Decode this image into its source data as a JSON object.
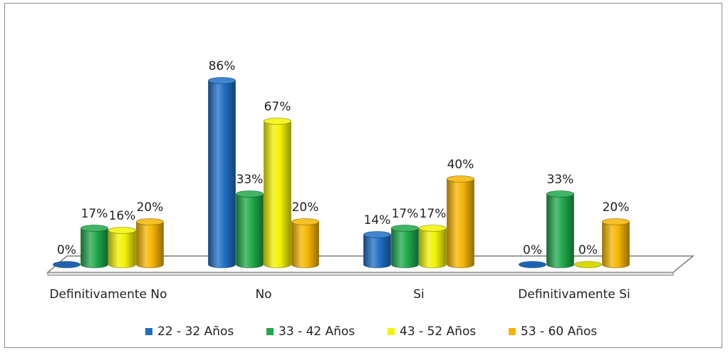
{
  "chart_data": {
    "type": "bar",
    "style": "3d-cylinder",
    "categories": [
      "Definitivamente No",
      "No",
      "Si",
      "Definitivamente Si"
    ],
    "series": [
      {
        "name": "22 - 32 Años",
        "values": [
          0,
          86,
          14,
          0
        ],
        "labels": [
          "0%",
          "86%",
          "14%",
          "0%"
        ],
        "color": "#1f6fc5"
      },
      {
        "name": "33 - 42 Años",
        "values": [
          17,
          33,
          17,
          33
        ],
        "labels": [
          "17%",
          "33%",
          "17%",
          "33%"
        ],
        "color": "#1fa84a"
      },
      {
        "name": "43 - 52 Años",
        "values": [
          16,
          67,
          17,
          0
        ],
        "labels": [
          "16%",
          "67%",
          "17%",
          "0%"
        ],
        "color": "#f2f200"
      },
      {
        "name": "53 - 60 Años",
        "values": [
          20,
          20,
          40,
          20
        ],
        "labels": [
          "20%",
          "20%",
          "40%",
          "20%"
        ],
        "color": "#f5b400"
      }
    ],
    "ylim": [
      0,
      100
    ],
    "grid": false,
    "legend": "bottom"
  }
}
